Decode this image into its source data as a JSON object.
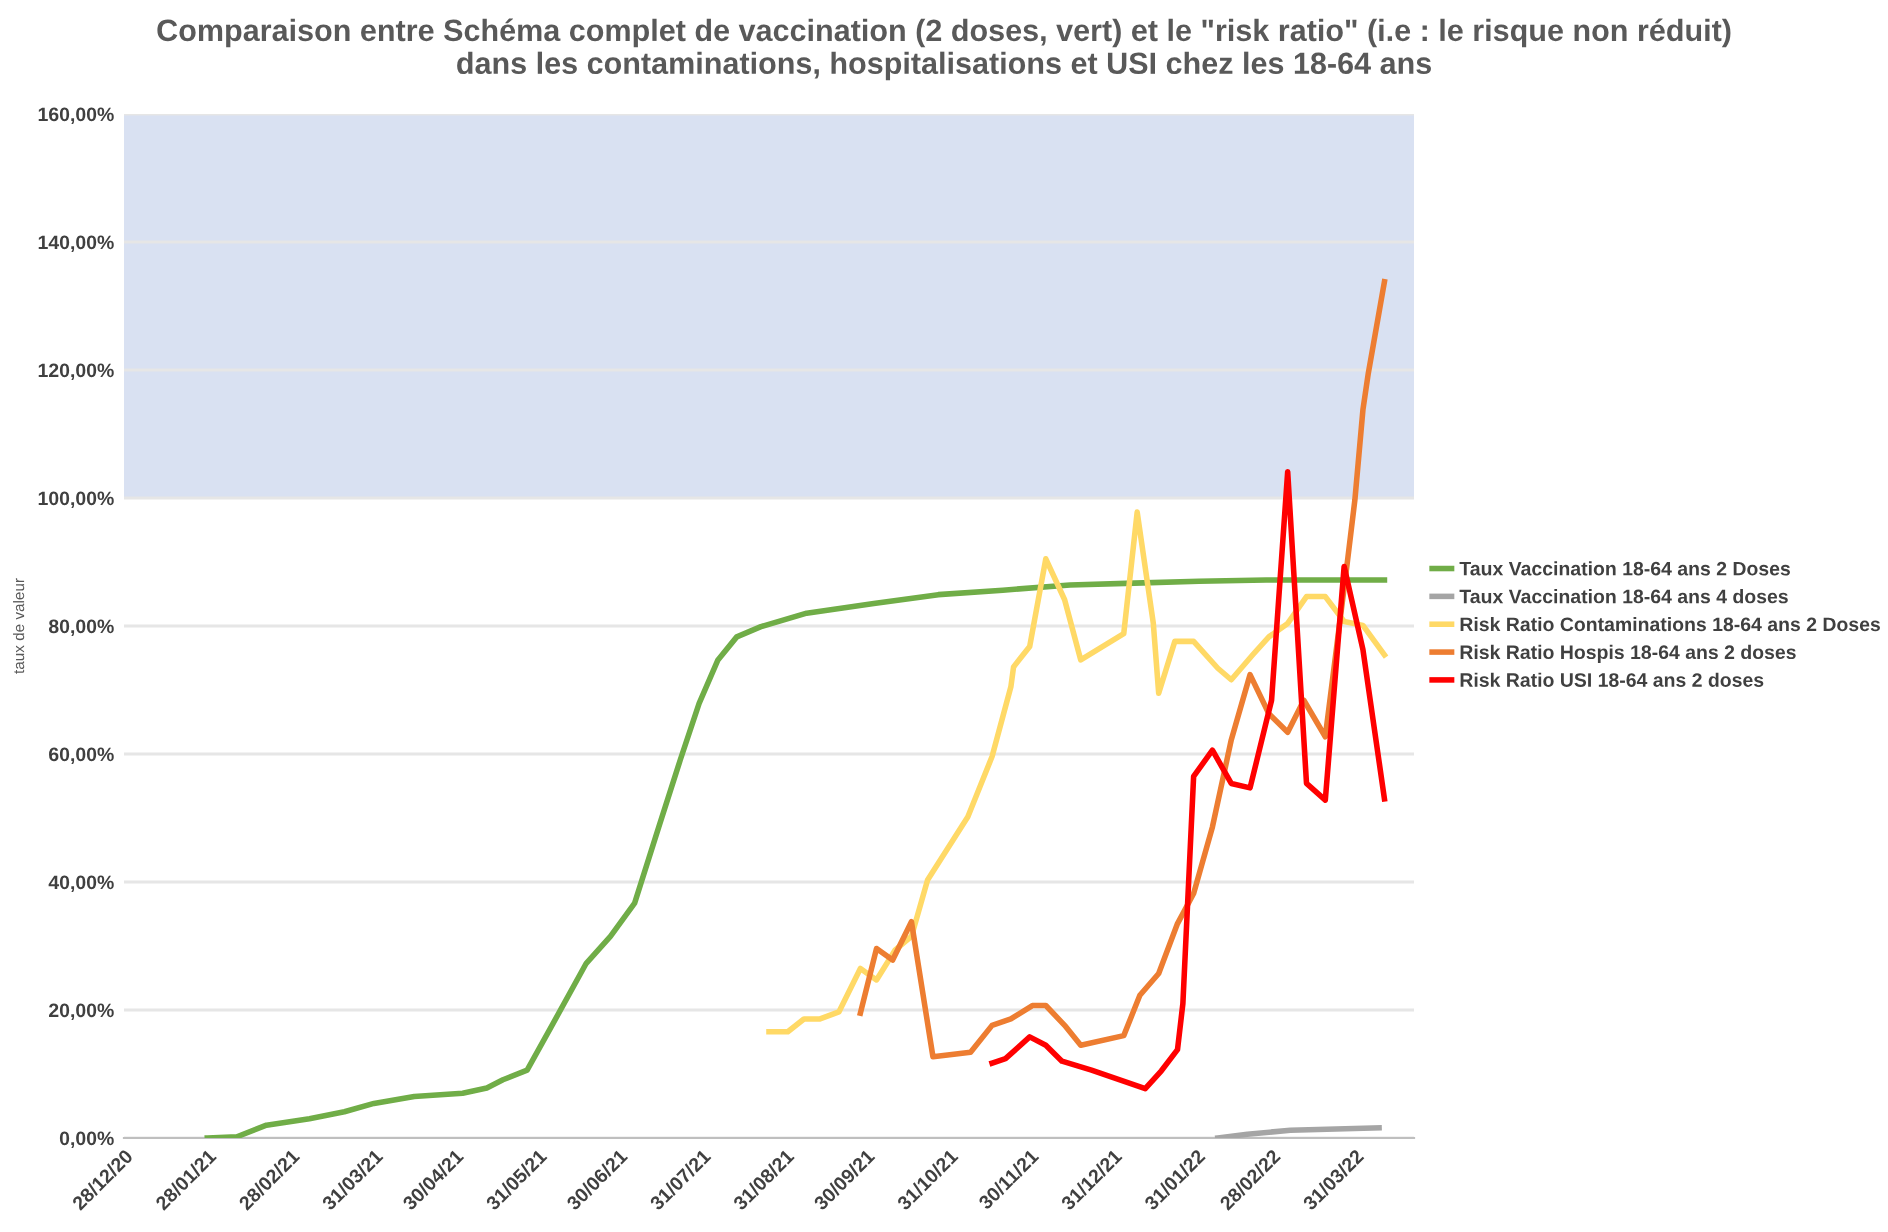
{
  "chart_data": {
    "type": "line",
    "title": "Comparaison entre Schéma complet de vaccination (2 doses, vert) et le \"risk ratio\" (i.e : le risque non réduit)\ndans les contaminations, hospitalisations et USI chez les 18-64 ans",
    "ylabel": "taux de valeur",
    "xlim": [
      "2020-12-28",
      "2022-04-22"
    ],
    "xticks": [
      {
        "value": "2020-12-28",
        "label": "28/12/20"
      },
      {
        "value": "2021-01-28",
        "label": "28/01/21"
      },
      {
        "value": "2021-02-28",
        "label": "28/02/21"
      },
      {
        "value": "2021-03-31",
        "label": "31/03/21"
      },
      {
        "value": "2021-04-30",
        "label": "30/04/21"
      },
      {
        "value": "2021-05-31",
        "label": "31/05/21"
      },
      {
        "value": "2021-06-30",
        "label": "30/06/21"
      },
      {
        "value": "2021-07-31",
        "label": "31/07/21"
      },
      {
        "value": "2021-08-31",
        "label": "31/08/21"
      },
      {
        "value": "2021-09-30",
        "label": "30/09/21"
      },
      {
        "value": "2021-10-31",
        "label": "31/10/21"
      },
      {
        "value": "2021-11-30",
        "label": "30/11/21"
      },
      {
        "value": "2021-12-31",
        "label": "31/12/21"
      },
      {
        "value": "2022-01-31",
        "label": "31/01/22"
      },
      {
        "value": "2022-02-28",
        "label": "28/02/22"
      },
      {
        "value": "2022-03-31",
        "label": "31/03/22"
      }
    ],
    "ylim": [
      0,
      160
    ],
    "yticks": [
      {
        "value": 0,
        "label": "0,00%"
      },
      {
        "value": 20,
        "label": "20,00%"
      },
      {
        "value": 40,
        "label": "40,00%"
      },
      {
        "value": 60,
        "label": "60,00%"
      },
      {
        "value": 80,
        "label": "80,00%"
      },
      {
        "value": 100,
        "label": "100,00%"
      },
      {
        "value": 120,
        "label": "120,00%"
      },
      {
        "value": 140,
        "label": "140,00%"
      },
      {
        "value": 160,
        "label": "160,00%"
      }
    ],
    "grid": "y",
    "legend": "right",
    "marker": "none",
    "line_style": "solid",
    "bands": [
      {
        "axis": "y",
        "from": 100,
        "to": 160,
        "color": "#d9e1f2"
      }
    ],
    "series": [
      {
        "name": "Taux Vaccination 18-64 ans 2 Doses",
        "color": "#70ad47",
        "x": [
          "2021-01-28",
          "2021-02-08",
          "2021-02-19",
          "2021-03-07",
          "2021-03-20",
          "2021-03-31",
          "2021-04-15",
          "2021-05-03",
          "2021-05-12",
          "2021-05-18",
          "2021-05-27",
          "2021-06-05",
          "2021-06-18",
          "2021-06-27",
          "2021-07-06",
          "2021-07-15",
          "2021-07-23",
          "2021-07-30",
          "2021-08-06",
          "2021-08-13",
          "2021-08-22",
          "2021-09-08",
          "2021-10-03",
          "2021-10-27",
          "2021-11-20",
          "2021-12-15",
          "2022-01-08",
          "2022-02-01",
          "2022-02-26",
          "2022-04-11"
        ],
        "values": [
          0,
          0.2,
          2.0,
          3.0,
          4.1,
          5.4,
          6.5,
          7.0,
          7.8,
          9.1,
          10.6,
          17.4,
          27.3,
          31.5,
          36.7,
          48.6,
          59.1,
          67.9,
          74.7,
          78.3,
          79.9,
          82.0,
          83.5,
          84.9,
          85.6,
          86.4,
          86.7,
          87.0,
          87.2,
          87.2
        ]
      },
      {
        "name": "Taux Vaccination 18-64 ans 4 doses",
        "color": "#a5a5a5",
        "x": [
          "2022-02-08",
          "2022-02-19",
          "2022-03-07",
          "2022-04-09"
        ],
        "values": [
          0,
          0.6,
          1.2,
          1.6
        ]
      },
      {
        "name": "Risk Ratio Contaminations 18-64 ans 2 Doses",
        "color": "#ffd966",
        "x": [
          "2021-08-25",
          "2021-09-01",
          "2021-09-07",
          "2021-09-13",
          "2021-09-20",
          "2021-09-28",
          "2021-10-04",
          "2021-10-11",
          "2021-10-17",
          "2021-10-23",
          "2021-11-07",
          "2021-11-16",
          "2021-11-23",
          "2021-11-24",
          "2021-11-30",
          "2021-12-06",
          "2021-12-13",
          "2021-12-19",
          "2022-01-04",
          "2022-01-09",
          "2022-01-15",
          "2022-01-17",
          "2022-01-23",
          "2022-01-30",
          "2022-02-08",
          "2022-02-13",
          "2022-02-21",
          "2022-02-27",
          "2022-03-06",
          "2022-03-13",
          "2022-03-20",
          "2022-03-27",
          "2022-04-03",
          "2022-04-11"
        ],
        "values": [
          16.6,
          16.6,
          18.6,
          18.6,
          19.7,
          26.5,
          24.7,
          29.4,
          31.5,
          40.3,
          50.2,
          59.6,
          70.5,
          73.6,
          76.8,
          90.5,
          84.1,
          74.7,
          78.8,
          97.8,
          80.4,
          69.5,
          77.6,
          77.6,
          73.4,
          71.6,
          75.5,
          78.3,
          80.4,
          84.6,
          84.6,
          80.7,
          80.1,
          75.5
        ]
      },
      {
        "name": "Risk Ratio Hospis 18-64 ans 2 doses",
        "color": "#ed7d31",
        "x": [
          "2021-09-28",
          "2021-10-04",
          "2021-10-10",
          "2021-10-17",
          "2021-10-25",
          "2021-11-08",
          "2021-11-16",
          "2021-11-23",
          "2021-12-01",
          "2021-12-06",
          "2021-12-13",
          "2021-12-19",
          "2022-01-04",
          "2022-01-10",
          "2022-01-17",
          "2022-01-24",
          "2022-01-30",
          "2022-02-06",
          "2022-02-13",
          "2022-02-20",
          "2022-02-27",
          "2022-03-06",
          "2022-03-12",
          "2022-03-20",
          "2022-03-28",
          "2022-03-31",
          "2022-04-03",
          "2022-04-05",
          "2022-04-11"
        ],
        "values": [
          19.5,
          29.6,
          27.8,
          33.8,
          12.7,
          13.4,
          17.6,
          18.6,
          20.7,
          20.7,
          17.6,
          14.5,
          16.0,
          22.3,
          25.7,
          33.5,
          38.2,
          48.6,
          62.2,
          72.4,
          66.3,
          63.4,
          68.4,
          62.7,
          89.3,
          99.7,
          113.8,
          119.5,
          133.8
        ]
      },
      {
        "name": "Risk Ratio USI 18-64 ans 2 doses",
        "color": "#ff0000",
        "x": [
          "2021-11-16",
          "2021-11-21",
          "2021-11-30",
          "2021-12-06",
          "2021-12-12",
          "2021-12-23",
          "2022-01-12",
          "2022-01-18",
          "2022-01-24",
          "2022-01-26",
          "2022-01-30",
          "2022-02-06",
          "2022-02-13",
          "2022-02-20",
          "2022-02-28",
          "2022-03-06",
          "2022-03-13",
          "2022-03-20",
          "2022-03-27",
          "2022-04-03",
          "2022-04-11"
        ],
        "values": [
          11.7,
          12.4,
          15.8,
          14.5,
          12.0,
          10.6,
          7.7,
          10.5,
          13.8,
          21.0,
          56.5,
          60.6,
          55.4,
          54.7,
          68.4,
          104.1,
          55.4,
          52.8,
          89.3,
          76.3,
          53.0
        ]
      }
    ]
  }
}
